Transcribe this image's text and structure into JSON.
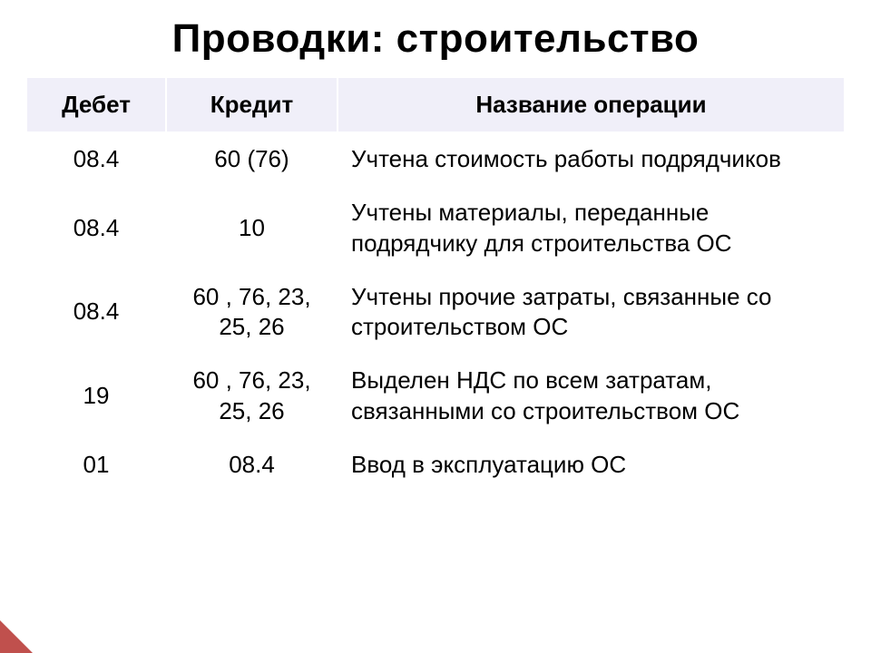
{
  "title": "Проводки: строительство",
  "table": {
    "columns": [
      {
        "label": "Дебет",
        "width": "17%",
        "align": "center"
      },
      {
        "label": "Кредит",
        "width": "21%",
        "align": "center"
      },
      {
        "label": "Название операции",
        "width": "62%",
        "align": "left"
      }
    ],
    "rows": [
      {
        "debit": "08.4",
        "credit": "60 (76)",
        "op": "Учтена стоимость работы подрядчиков"
      },
      {
        "debit": "08.4",
        "credit": "10",
        "op": "Учтены материалы, переданные подрядчику  для строительства ОС"
      },
      {
        "debit": "08.4",
        "credit": "60 , 76, 23, 25, 26",
        "op": "Учтены прочие затраты, связанные со строительством ОС"
      },
      {
        "debit": "19",
        "credit": "60 , 76, 23, 25, 26",
        "op": "Выделен НДС по всем затратам, связанными со строительством ОС"
      },
      {
        "debit": "01",
        "credit": "08.4",
        "op": "Ввод в эксплуатацию ОС"
      }
    ],
    "header_bg": "#f0eff9",
    "border_color": "#ffffff",
    "font_size": 26,
    "title_font_size": 44,
    "text_color": "#000000"
  },
  "accent_color": "#c0504d",
  "background_color": "#ffffff"
}
